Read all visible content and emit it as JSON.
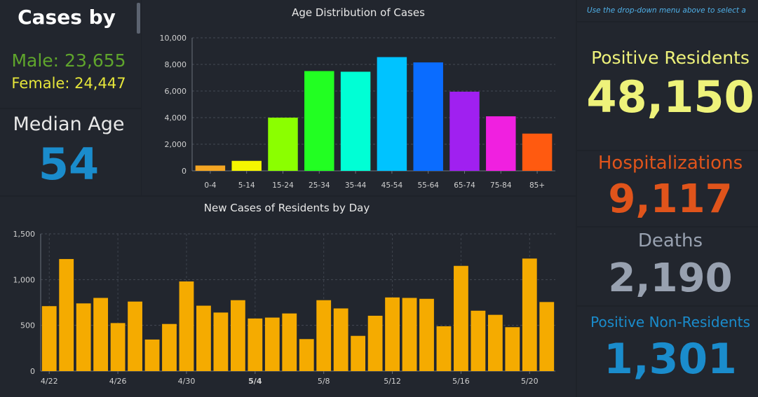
{
  "left_panel": {
    "title": "Cases by",
    "male": "Male: 23,655",
    "female": "Female: 24,447",
    "median_label": "Median Age",
    "median_value": "54"
  },
  "stats": {
    "hint": "Use the drop-down menu above to select a",
    "positive_label": "Positive Residents",
    "positive_value": "48,150",
    "hosp_label": "Hospitalizations",
    "hosp_value": "9,117",
    "deaths_label": "Deaths",
    "deaths_value": "2,190",
    "nonres_label": "Positive Non-Residents",
    "nonres_value": "1,301"
  },
  "colors": {
    "male": "#5fa52c",
    "female": "#e6e63a",
    "median": "#1a8ccc",
    "positive": "#eef27a",
    "hosp": "#e0541b",
    "deaths": "#98a1b0",
    "nonres": "#1a8ccc",
    "daily_bar": "#f5ab00"
  },
  "chart_data": [
    {
      "type": "bar",
      "title": "Age Distribution of Cases",
      "categories": [
        "0-4",
        "5-14",
        "15-24",
        "25-34",
        "35-44",
        "45-54",
        "55-64",
        "65-74",
        "75-84",
        "85+"
      ],
      "values": [
        400,
        750,
        4000,
        7500,
        7450,
        8550,
        8150,
        5950,
        4100,
        2800
      ],
      "colors": [
        "#f5a623",
        "#f5f500",
        "#8bff00",
        "#22ff22",
        "#00ffd5",
        "#00c3ff",
        "#0a6cff",
        "#a020f0",
        "#f020e0",
        "#ff5a10"
      ],
      "ylim": [
        0,
        10000
      ],
      "yticks": [
        0,
        2000,
        4000,
        6000,
        8000,
        10000
      ],
      "ytick_labels": [
        "0",
        "2,000",
        "4,000",
        "6,000",
        "8,000",
        "10,000"
      ],
      "grid": true
    },
    {
      "type": "bar",
      "title": "New Cases of Residents by Day",
      "categories": [
        "4/22",
        "4/23",
        "4/24",
        "4/25",
        "4/26",
        "4/27",
        "4/28",
        "4/29",
        "4/30",
        "5/1",
        "5/2",
        "5/3",
        "5/4",
        "5/5",
        "5/6",
        "5/7",
        "5/8",
        "5/9",
        "5/10",
        "5/11",
        "5/12",
        "5/13",
        "5/14",
        "5/15",
        "5/16",
        "5/17",
        "5/18",
        "5/19",
        "5/20",
        "5/21"
      ],
      "values": [
        710,
        1225,
        740,
        800,
        525,
        760,
        345,
        515,
        980,
        715,
        640,
        775,
        575,
        585,
        630,
        350,
        775,
        685,
        385,
        605,
        805,
        800,
        790,
        490,
        1150,
        660,
        615,
        480,
        1230,
        755
      ],
      "xtick_labels": [
        "4/22",
        "4/26",
        "4/30",
        "5/4",
        "5/8",
        "5/12",
        "5/16",
        "5/20"
      ],
      "xtick_indices": [
        0,
        4,
        8,
        12,
        16,
        20,
        24,
        28
      ],
      "ylim": [
        0,
        1500
      ],
      "yticks": [
        0,
        500,
        1000,
        1500
      ],
      "ytick_labels": [
        "0",
        "500",
        "1,000",
        "1,500"
      ],
      "grid": true
    }
  ]
}
